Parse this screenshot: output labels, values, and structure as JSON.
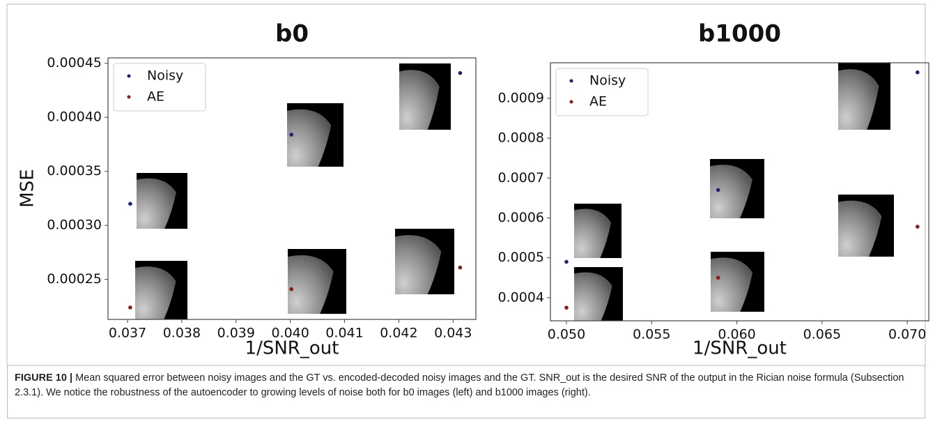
{
  "chart_data": [
    {
      "type": "scatter",
      "title": "b0",
      "x_label": "1/SNR_out",
      "y_label": "MSE",
      "x": [
        0.03705,
        0.04002,
        0.04313
      ],
      "series": [
        {
          "name": "Noisy",
          "color": "#1a237e",
          "x": [
            0.03705,
            0.04002,
            0.04313
          ],
          "values": [
            0.00032,
            0.000384,
            0.000441
          ]
        },
        {
          "name": "AE",
          "color": "#8b1a1a",
          "x": [
            0.03705,
            0.04002,
            0.04313
          ],
          "values": [
            0.000224,
            0.000241,
            0.000261
          ]
        }
      ],
      "xlim": [
        0.03664,
        0.04342
      ],
      "ylim": [
        0.000213,
        0.000455
      ],
      "xticks": [
        0.037,
        0.038,
        0.039,
        {
          "value": 0.04,
          "label": "0.040"
        },
        0.041,
        0.042,
        0.043
      ],
      "yticks": [
        0.00025,
        {
          "value": 0.0003,
          "label": "0.00030"
        },
        0.00035,
        {
          "value": 0.0004,
          "label": "0.00040"
        },
        0.00045
      ],
      "legend": "upper left"
    },
    {
      "type": "scatter",
      "title": "b1000",
      "x_label": "1/SNR_out",
      "x": [
        0.05,
        0.0589,
        0.0706
      ],
      "series": [
        {
          "name": "Noisy",
          "color": "#1a237e",
          "x": [
            0.05,
            0.0589,
            0.0706
          ],
          "values": [
            0.00049,
            0.00067,
            0.000965
          ]
        },
        {
          "name": "AE",
          "color": "#8b1a1a",
          "x": [
            0.05,
            0.0589,
            0.0706
          ],
          "values": [
            0.000375,
            0.00045,
            0.000578
          ]
        }
      ],
      "xlim": [
        0.04906,
        0.07126
      ],
      "ylim": [
        0.000342,
        0.000989
      ],
      "xticks": [
        {
          "value": 0.05,
          "label": "0.050"
        },
        0.055,
        {
          "value": 0.06,
          "label": "0.060"
        },
        0.065,
        {
          "value": 0.07,
          "label": "0.070"
        }
      ],
      "yticks": [
        0.0004,
        0.0005,
        0.0006,
        0.0007,
        0.0008,
        0.0009
      ],
      "legend": "upper left"
    }
  ],
  "caption": {
    "label": "FIGURE 10 |",
    "text": "Mean squared error between noisy images and the GT vs. encoded-decoded noisy images and the GT. SNR_out is the desired SNR of the output in the Rician noise formula (Subsection 2.3.1). We notice the robustness of the autoencoder to growing levels of noise both for b0 images (left) and b1000 images (right)."
  }
}
